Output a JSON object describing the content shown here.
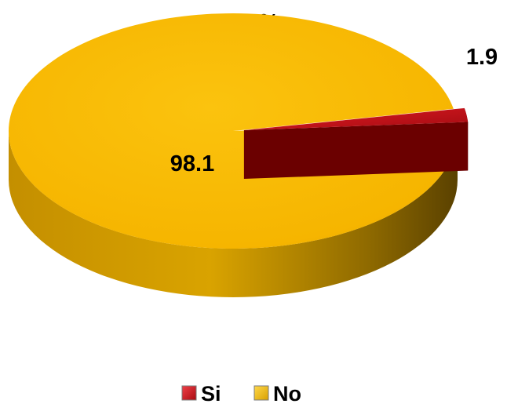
{
  "chart_data": {
    "type": "pie",
    "title": "%",
    "categories": [
      "Si",
      "No"
    ],
    "values": [
      1.9,
      98.1
    ],
    "data_labels": [
      "1.9",
      "98.1"
    ],
    "colors": {
      "Si": "#c8111a",
      "No": "#f8bb08"
    },
    "style": "3d-exploded",
    "legend": {
      "position": "bottom",
      "entries": [
        "Si",
        "No"
      ]
    }
  }
}
